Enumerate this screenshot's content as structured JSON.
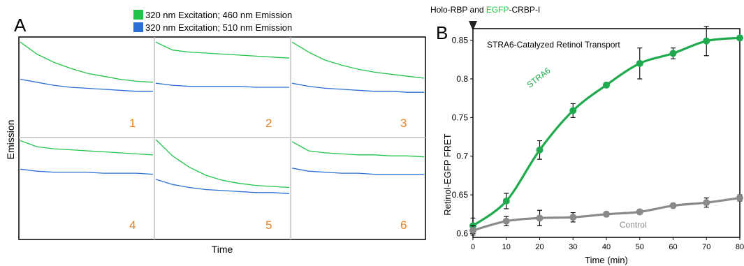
{
  "colors": {
    "green": "#22c34a",
    "blue": "#2a6fd6",
    "orange": "#e8821e",
    "dark_green": "#1faa4d",
    "gray": "#8a8a8a",
    "grid": "#c4c4c4"
  },
  "panel_a": {
    "letter": "A",
    "legend": [
      {
        "label": "320 nm Excitation; 460 nm Emission",
        "color_key": "green"
      },
      {
        "label": "320 nm Excitation; 510 nm Emission",
        "color_key": "blue"
      }
    ],
    "ylabel": "Emission",
    "xlabel": "Time"
  },
  "panel_b": {
    "letter": "B",
    "top_annotation": {
      "prefix": "Holo-RBP and ",
      "highlight": "EGFP",
      "suffix": "-CRBP-I"
    },
    "inner_title": "STRA6-Catalyzed Retinol Transport",
    "ylabel": "Retinol-EGFP FRET",
    "xlabel": "Time (min)",
    "xticks": [
      "0",
      "10",
      "20",
      "30",
      "40",
      "50",
      "60",
      "70",
      "80"
    ],
    "yticks": [
      "0.6",
      "0.65",
      "0.7",
      "0.75",
      "0.8",
      "0.85"
    ]
  },
  "chart_data": [
    {
      "type": "line",
      "panel": "A",
      "ylabel": "Emission",
      "xlabel": "Time",
      "grid": true,
      "legend_placement": "top-center",
      "series_names": [
        "320 nm Excitation; 460 nm Emission",
        "320 nm Excitation; 510 nm Emission"
      ],
      "subplots": [
        {
          "label": "1",
          "series": [
            {
              "name": "320 nm Excitation; 460 nm Emission",
              "color_key": "green",
              "values": [
                0.95,
                0.83,
                0.75,
                0.69,
                0.64,
                0.61,
                0.58,
                0.56,
                0.55
              ]
            },
            {
              "name": "320 nm Excitation; 510 nm Emission",
              "color_key": "blue",
              "values": [
                0.58,
                0.55,
                0.52,
                0.5,
                0.49,
                0.48,
                0.47,
                0.46,
                0.46
              ]
            }
          ]
        },
        {
          "label": "2",
          "series": [
            {
              "name": "320 nm Excitation; 460 nm Emission",
              "color_key": "green",
              "values": [
                0.95,
                0.87,
                0.85,
                0.84,
                0.83,
                0.82,
                0.81,
                0.8,
                0.79
              ]
            },
            {
              "name": "320 nm Excitation; 510 nm Emission",
              "color_key": "blue",
              "values": [
                0.54,
                0.52,
                0.51,
                0.51,
                0.51,
                0.51,
                0.5,
                0.5,
                0.5
              ]
            }
          ]
        },
        {
          "label": "3",
          "series": [
            {
              "name": "320 nm Excitation; 460 nm Emission",
              "color_key": "green",
              "values": [
                0.95,
                0.85,
                0.77,
                0.72,
                0.68,
                0.65,
                0.63,
                0.61,
                0.59
              ]
            },
            {
              "name": "320 nm Excitation; 510 nm Emission",
              "color_key": "blue",
              "values": [
                0.54,
                0.51,
                0.49,
                0.48,
                0.47,
                0.46,
                0.46,
                0.45,
                0.45
              ]
            }
          ]
        },
        {
          "label": "4",
          "series": [
            {
              "name": "320 nm Excitation; 460 nm Emission",
              "color_key": "green",
              "values": [
                0.97,
                0.91,
                0.89,
                0.88,
                0.87,
                0.86,
                0.85,
                0.84,
                0.83
              ]
            },
            {
              "name": "320 nm Excitation; 510 nm Emission",
              "color_key": "blue",
              "values": [
                0.69,
                0.67,
                0.66,
                0.66,
                0.66,
                0.65,
                0.65,
                0.65,
                0.64
              ]
            }
          ]
        },
        {
          "label": "5",
          "series": [
            {
              "name": "320 nm Excitation; 460 nm Emission",
              "color_key": "green",
              "values": [
                0.98,
                0.82,
                0.71,
                0.63,
                0.58,
                0.55,
                0.53,
                0.52,
                0.51
              ]
            },
            {
              "name": "320 nm Excitation; 510 nm Emission",
              "color_key": "blue",
              "values": [
                0.59,
                0.54,
                0.51,
                0.49,
                0.48,
                0.47,
                0.46,
                0.46,
                0.45
              ]
            }
          ]
        },
        {
          "label": "6",
          "series": [
            {
              "name": "320 nm Excitation; 460 nm Emission",
              "color_key": "green",
              "values": [
                0.96,
                0.87,
                0.85,
                0.84,
                0.83,
                0.83,
                0.82,
                0.82,
                0.81
              ]
            },
            {
              "name": "320 nm Excitation; 510 nm Emission",
              "color_key": "blue",
              "values": [
                0.7,
                0.67,
                0.66,
                0.65,
                0.65,
                0.64,
                0.64,
                0.64,
                0.64
              ]
            }
          ]
        }
      ]
    },
    {
      "type": "line",
      "panel": "B",
      "title": "STRA6-Catalyzed Retinol Transport",
      "xlabel": "Time (min)",
      "ylabel": "Retinol-EGFP FRET",
      "xlim": [
        0,
        80
      ],
      "ylim": [
        0.595,
        0.865
      ],
      "grid": false,
      "x": [
        0,
        10,
        20,
        30,
        40,
        50,
        60,
        70,
        80
      ],
      "series": [
        {
          "name": "STRA6",
          "color_key": "dark_green",
          "values": [
            0.61,
            0.642,
            0.708,
            0.759,
            0.792,
            0.82,
            0.833,
            0.849,
            0.853
          ],
          "errors": [
            0.01,
            0.01,
            0.012,
            0.009,
            0.003,
            0.02,
            0.007,
            0.019,
            0.003
          ]
        },
        {
          "name": "Control",
          "color_key": "gray",
          "values": [
            0.604,
            0.616,
            0.62,
            0.621,
            0.625,
            0.628,
            0.636,
            0.64,
            0.646
          ],
          "errors": [
            0.006,
            0.006,
            0.01,
            0.006,
            0.003,
            0.003,
            0.003,
            0.006,
            0.004
          ]
        }
      ]
    }
  ]
}
